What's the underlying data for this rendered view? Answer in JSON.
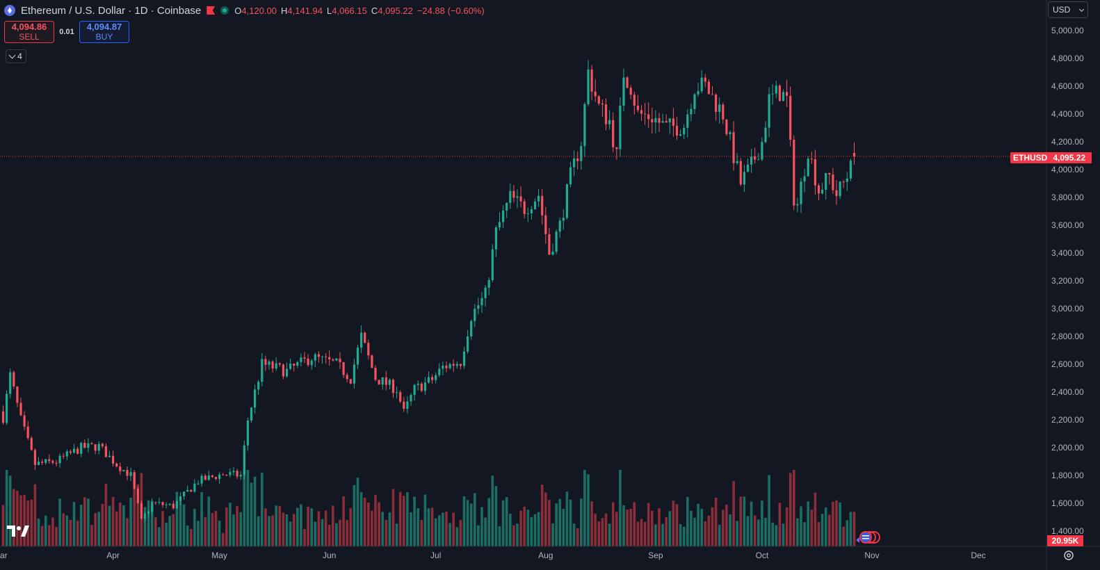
{
  "header": {
    "title": "Ethereum / U.S. Dollar · 1D · Coinbase",
    "ohlc": [
      {
        "k": "O",
        "v": "4,120.00"
      },
      {
        "k": "H",
        "v": "4,141.94"
      },
      {
        "k": "L",
        "v": "4,066.15"
      },
      {
        "k": "C",
        "v": "4,095.22"
      }
    ],
    "change": "−24.88 (−0.60%)"
  },
  "trade": {
    "sell_price": "4,094.86",
    "sell_label": "SELL",
    "spread": "0.01",
    "buy_price": "4,094.87",
    "buy_label": "BUY"
  },
  "collapse_count": "4",
  "currency": "USD",
  "last_price": {
    "symbol": "ETHUSD",
    "value": "4,095.22"
  },
  "volume_label": "20.95K",
  "colors": {
    "up": "#22ab94",
    "down": "#f7525f",
    "up_vol": "#1b6e64",
    "down_vol": "#8c2e3a",
    "background": "#131722"
  },
  "chart_data": {
    "type": "candlestick",
    "y_ticks": [
      "5,000.00",
      "4,800.00",
      "4,600.00",
      "4,400.00",
      "4,200.00",
      "4,000.00",
      "3,800.00",
      "3,600.00",
      "3,400.00",
      "3,200.00",
      "3,000.00",
      "2,800.00",
      "2,600.00",
      "2,400.00",
      "2,200.00",
      "2,000.00",
      "1,800.00",
      "1,600.00",
      "1,400.00"
    ],
    "y_tick_values": [
      5000,
      4800,
      4600,
      4400,
      4200,
      4000,
      3800,
      3600,
      3400,
      3200,
      3000,
      2800,
      2600,
      2400,
      2200,
      2000,
      1800,
      1600,
      1400
    ],
    "ylim": [
      1300,
      5100
    ],
    "x_ticks": [
      {
        "label": "ar",
        "date": "2025-03-01"
      },
      {
        "label": "Apr",
        "date": "2025-04-01"
      },
      {
        "label": "May",
        "date": "2025-05-01"
      },
      {
        "label": "Jun",
        "date": "2025-06-01"
      },
      {
        "label": "Jul",
        "date": "2025-07-01"
      },
      {
        "label": "Aug",
        "date": "2025-08-01"
      },
      {
        "label": "Sep",
        "date": "2025-09-01"
      },
      {
        "label": "Oct",
        "date": "2025-10-01"
      },
      {
        "label": "Nov",
        "date": "2025-11-01"
      },
      {
        "label": "Dec",
        "date": "2025-12-01"
      }
    ],
    "last_price": 4095.22,
    "close_anchors": [
      [
        "2025-03-01",
        2217
      ],
      [
        "2025-03-03",
        2520
      ],
      [
        "2025-03-06",
        2200
      ],
      [
        "2025-03-10",
        1880
      ],
      [
        "2025-03-16",
        1900
      ],
      [
        "2025-03-23",
        2000
      ],
      [
        "2025-03-28",
        2010
      ],
      [
        "2025-04-02",
        1880
      ],
      [
        "2025-04-06",
        1800
      ],
      [
        "2025-04-09",
        1470
      ],
      [
        "2025-04-12",
        1600
      ],
      [
        "2025-04-18",
        1580
      ],
      [
        "2025-04-25",
        1760
      ],
      [
        "2025-05-02",
        1810
      ],
      [
        "2025-05-07",
        1800
      ],
      [
        "2025-05-09",
        2200
      ],
      [
        "2025-05-13",
        2600
      ],
      [
        "2025-05-20",
        2550
      ],
      [
        "2025-05-27",
        2650
      ],
      [
        "2025-06-03",
        2600
      ],
      [
        "2025-06-07",
        2500
      ],
      [
        "2025-06-10",
        2800
      ],
      [
        "2025-06-14",
        2500
      ],
      [
        "2025-06-20",
        2420
      ],
      [
        "2025-06-22",
        2250
      ],
      [
        "2025-06-25",
        2420
      ],
      [
        "2025-06-30",
        2490
      ],
      [
        "2025-07-03",
        2580
      ],
      [
        "2025-07-08",
        2620
      ],
      [
        "2025-07-11",
        2950
      ],
      [
        "2025-07-15",
        3100
      ],
      [
        "2025-07-18",
        3550
      ],
      [
        "2025-07-22",
        3800
      ],
      [
        "2025-07-26",
        3720
      ],
      [
        "2025-07-30",
        3820
      ],
      [
        "2025-08-02",
        3400
      ],
      [
        "2025-08-05",
        3600
      ],
      [
        "2025-08-08",
        3950
      ],
      [
        "2025-08-11",
        4200
      ],
      [
        "2025-08-13",
        4700
      ],
      [
        "2025-08-16",
        4450
      ],
      [
        "2025-08-19",
        4350
      ],
      [
        "2025-08-21",
        4100
      ],
      [
        "2025-08-23",
        4700
      ],
      [
        "2025-08-25",
        4600
      ],
      [
        "2025-08-27",
        4400
      ],
      [
        "2025-08-31",
        4380
      ],
      [
        "2025-09-04",
        4300
      ],
      [
        "2025-09-09",
        4320
      ],
      [
        "2025-09-12",
        4600
      ],
      [
        "2025-09-15",
        4600
      ],
      [
        "2025-09-20",
        4400
      ],
      [
        "2025-09-22",
        4200
      ],
      [
        "2025-09-25",
        3900
      ],
      [
        "2025-09-28",
        4030
      ],
      [
        "2025-10-01",
        4200
      ],
      [
        "2025-10-03",
        4500
      ],
      [
        "2025-10-06",
        4560
      ],
      [
        "2025-10-08",
        4500
      ],
      [
        "2025-10-10",
        3800
      ],
      [
        "2025-10-11",
        3750
      ],
      [
        "2025-10-14",
        4150
      ],
      [
        "2025-10-17",
        3850
      ],
      [
        "2025-10-20",
        3950
      ],
      [
        "2025-10-22",
        3820
      ],
      [
        "2025-10-25",
        3950
      ],
      [
        "2025-10-26",
        4120
      ],
      [
        "2025-10-27",
        4095.22
      ]
    ],
    "series": [
      {
        "name": "ETHUSD"
      }
    ]
  }
}
